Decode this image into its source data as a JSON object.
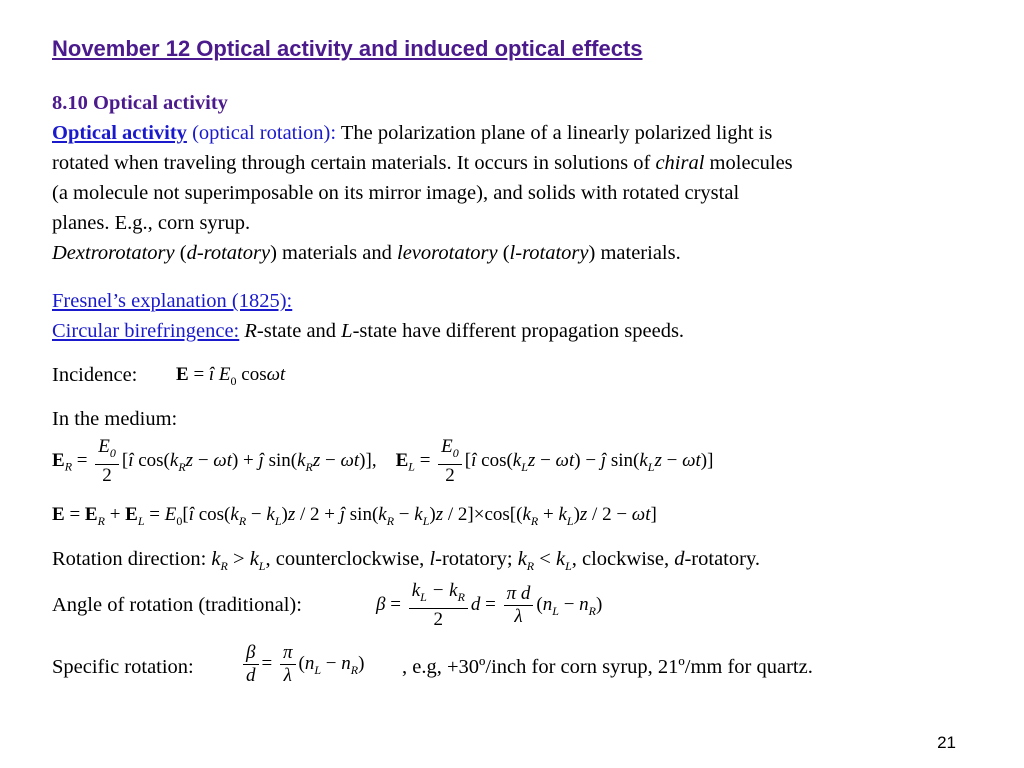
{
  "title": "November 12 Optical activity and induced optical effects",
  "section": "8.10 Optical activity",
  "definition": {
    "term": "Optical activity",
    "aside": "(optical rotation):",
    "text1": "The polarization plane of a linearly polarized light is",
    "text2": "rotated when traveling through certain materials. It occurs in solutions of",
    "chiral": "chiral",
    "text2b": "molecules",
    "text3": "(a molecule not superimposable on its mirror image), and solids with rotated crystal",
    "text4": "planes. E.g., corn syrup."
  },
  "rotatory": {
    "dextro": "Dextrorotatory",
    "dextro_short": "d-rotatory",
    "middle": ") materials and",
    "levo": "levorotatory",
    "levo_short": "l-rotatory",
    "end": ") materials."
  },
  "fresnel": {
    "heading": "Fresnel’s explanation (1825):",
    "birefringence": "Circular birefringence:",
    "text": "-state and",
    "text_end": "-state have different propagation speeds."
  },
  "incidence_label": "Incidence:",
  "medium_label": "In the medium:",
  "rotation_direction": {
    "label": "Rotation direction:",
    "text1": ", counterclockwise,",
    "text2": "-rotatory;",
    "text3": ", clockwise,",
    "text4": "-rotatory."
  },
  "angle_label": "Angle of rotation (traditional):",
  "specific_label": "Specific rotation:",
  "specific_note": ", e.g, +30º/inch for corn syrup, 21º/mm for quartz.",
  "page_number": "21"
}
